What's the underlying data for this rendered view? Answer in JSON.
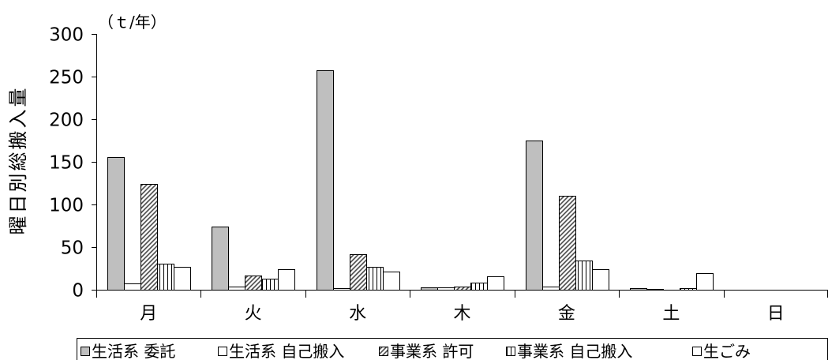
{
  "chart_data": {
    "type": "bar",
    "yunit": "（ｔ/年）",
    "ylabel": "曜日別総搬入量",
    "categories": [
      "月",
      "火",
      "水",
      "木",
      "金",
      "土",
      "日"
    ],
    "ylim": [
      0,
      300
    ],
    "yticks": [
      0,
      50,
      100,
      150,
      200,
      250,
      300
    ],
    "grid": false,
    "legend_position": "bottom",
    "series": [
      {
        "name": "生活系 委託",
        "fill": "#bfbfbf",
        "pattern": "solid",
        "values": [
          156,
          74,
          257,
          3,
          175,
          2,
          0
        ]
      },
      {
        "name": "生活系 自己搬入",
        "fill": "#ffffff",
        "pattern": "solid",
        "values": [
          7,
          4,
          2,
          3,
          4,
          1,
          0
        ]
      },
      {
        "name": "事業系 許可",
        "fill": "#ffffff",
        "pattern": "diagonal-hatch",
        "values": [
          124,
          17,
          42,
          4,
          110,
          0,
          0
        ]
      },
      {
        "name": "事業系 自己搬入",
        "fill": "#ffffff",
        "pattern": "vertical-stripes",
        "values": [
          31,
          13,
          27,
          8,
          34,
          2,
          0
        ]
      },
      {
        "name": "生ごみ",
        "fill": "#ffffff",
        "pattern": "solid",
        "values": [
          27,
          24,
          21,
          16,
          24,
          19,
          0
        ]
      }
    ]
  }
}
